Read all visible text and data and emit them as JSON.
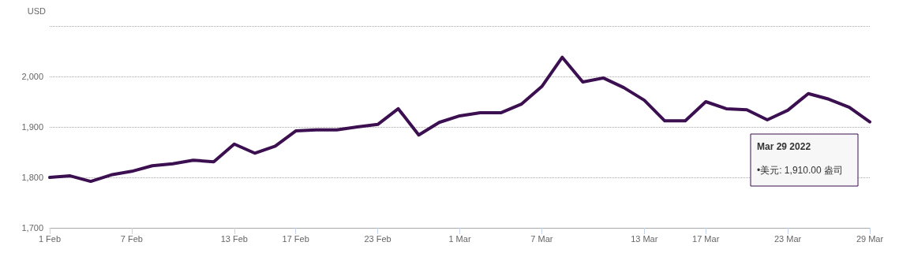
{
  "chart_data": {
    "type": "line",
    "ylabel": "USD",
    "categories": [
      "1 Feb",
      null,
      null,
      null,
      "7 Feb",
      null,
      null,
      null,
      null,
      "13 Feb",
      null,
      null,
      "17 Feb",
      null,
      null,
      null,
      "23 Feb",
      null,
      null,
      null,
      "1 Mar",
      null,
      null,
      null,
      "7 Mar",
      null,
      null,
      null,
      null,
      "13 Mar",
      null,
      null,
      "17 Mar",
      null,
      null,
      null,
      "23 Mar",
      null,
      null,
      null,
      "29 Mar"
    ],
    "series": [
      {
        "color": "#3b0f50",
        "values": [
          1800,
          1803,
          1792,
          1805,
          1812,
          1823,
          1827,
          1834,
          1831,
          1866,
          1848,
          1862,
          1892,
          1894,
          1894,
          1900,
          1905,
          1936,
          1884,
          1909,
          1922,
          1928,
          1928,
          1945,
          1980,
          2038,
          1989,
          1997,
          1978,
          1953,
          1912,
          1912,
          1950,
          1936,
          1934,
          1914,
          1933,
          1966,
          1955,
          1939,
          1910
        ]
      }
    ],
    "ylim": [
      1700,
      2100
    ],
    "yticks": [
      {
        "value": 1700,
        "label": "1,700"
      },
      {
        "value": 1800,
        "label": "1,800"
      },
      {
        "value": 1900,
        "label": "1,900"
      },
      {
        "value": 2000,
        "label": "2,000"
      },
      {
        "value": 2100,
        "label": null
      }
    ],
    "grid": "y",
    "marker": "none",
    "line_style": "solid",
    "annotations": [
      "Mar 29 2022",
      "•美元: 1,910.00 盎司"
    ]
  }
}
